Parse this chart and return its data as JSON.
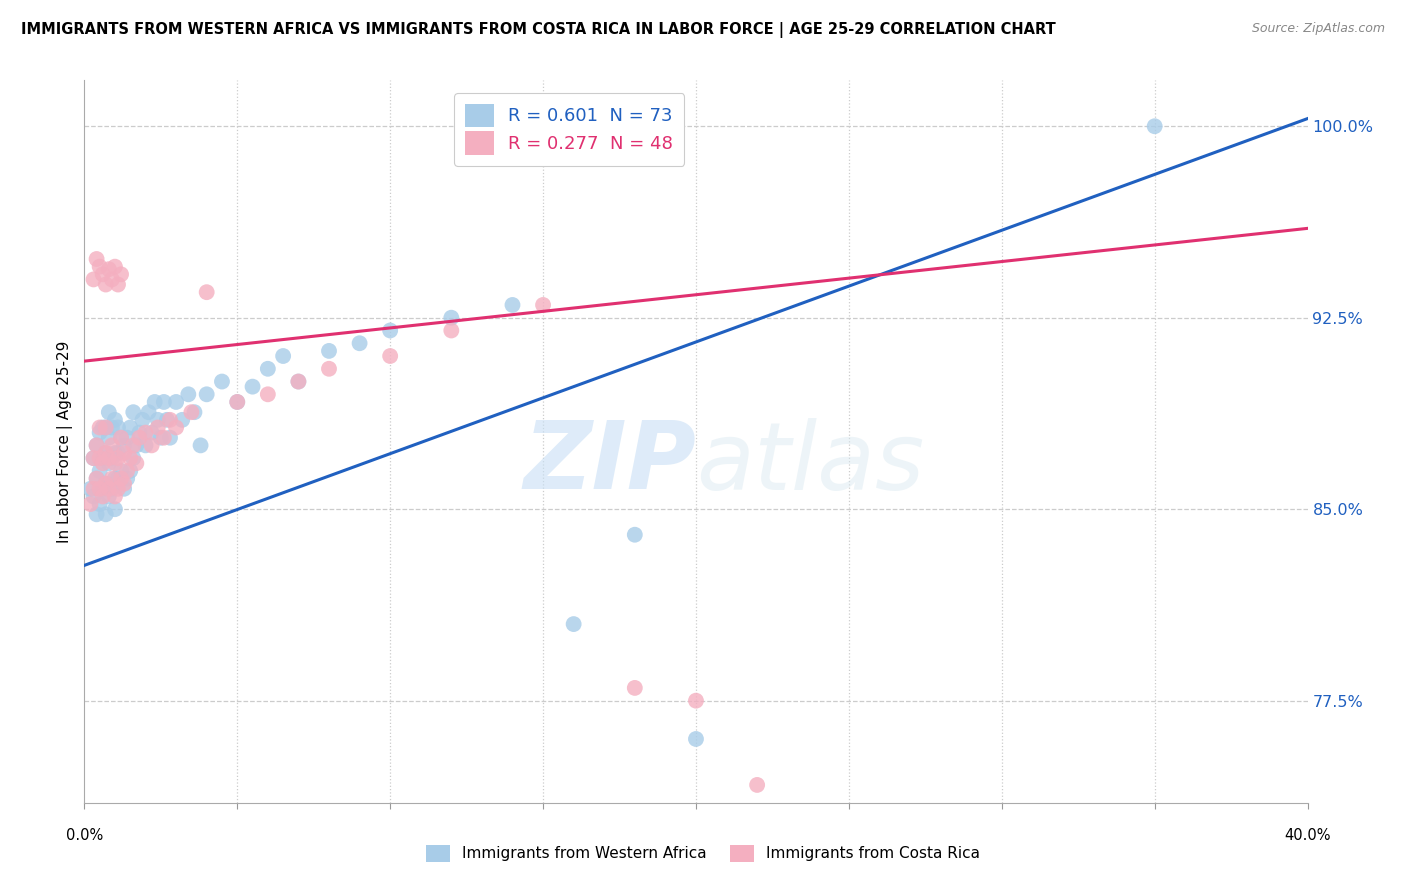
{
  "title": "IMMIGRANTS FROM WESTERN AFRICA VS IMMIGRANTS FROM COSTA RICA IN LABOR FORCE | AGE 25-29 CORRELATION CHART",
  "source": "Source: ZipAtlas.com",
  "ylabel_label": "In Labor Force | Age 25-29",
  "ytick_vals": [
    0.775,
    0.85,
    0.925,
    1.0
  ],
  "ytick_labels": [
    "77.5%",
    "85.0%",
    "92.5%",
    "100.0%"
  ],
  "xmin": 0.0,
  "xmax": 0.4,
  "ymin": 0.735,
  "ymax": 1.018,
  "blue_R": 0.601,
  "blue_N": 73,
  "pink_R": 0.277,
  "pink_N": 48,
  "blue_color": "#a8cce8",
  "pink_color": "#f4afc0",
  "blue_line_color": "#2060c0",
  "pink_line_color": "#e03070",
  "blue_label": "Immigrants from Western Africa",
  "pink_label": "Immigrants from Costa Rica",
  "watermark_zip": "ZIP",
  "watermark_atlas": "atlas",
  "grid_color": "#cccccc",
  "background_color": "#ffffff",
  "blue_line_x0": 0.0,
  "blue_line_y0": 0.828,
  "blue_line_x1": 0.4,
  "blue_line_y1": 1.003,
  "pink_line_x0": 0.0,
  "pink_line_y0": 0.908,
  "pink_line_x1": 0.4,
  "pink_line_y1": 0.96,
  "blue_scatter_x": [
    0.002,
    0.003,
    0.003,
    0.004,
    0.004,
    0.004,
    0.005,
    0.005,
    0.005,
    0.006,
    0.006,
    0.006,
    0.007,
    0.007,
    0.007,
    0.007,
    0.008,
    0.008,
    0.008,
    0.008,
    0.009,
    0.009,
    0.009,
    0.01,
    0.01,
    0.01,
    0.01,
    0.011,
    0.011,
    0.011,
    0.012,
    0.012,
    0.013,
    0.013,
    0.014,
    0.014,
    0.015,
    0.015,
    0.016,
    0.016,
    0.017,
    0.018,
    0.019,
    0.02,
    0.021,
    0.022,
    0.023,
    0.024,
    0.025,
    0.026,
    0.027,
    0.028,
    0.03,
    0.032,
    0.034,
    0.036,
    0.038,
    0.04,
    0.045,
    0.05,
    0.055,
    0.06,
    0.065,
    0.07,
    0.08,
    0.09,
    0.1,
    0.12,
    0.14,
    0.16,
    0.18,
    0.2,
    0.35
  ],
  "blue_scatter_y": [
    0.858,
    0.855,
    0.87,
    0.848,
    0.862,
    0.875,
    0.852,
    0.865,
    0.88,
    0.858,
    0.87,
    0.882,
    0.848,
    0.86,
    0.872,
    0.882,
    0.855,
    0.868,
    0.878,
    0.888,
    0.858,
    0.87,
    0.882,
    0.85,
    0.862,
    0.872,
    0.885,
    0.862,
    0.872,
    0.882,
    0.865,
    0.878,
    0.858,
    0.875,
    0.862,
    0.878,
    0.865,
    0.882,
    0.87,
    0.888,
    0.875,
    0.88,
    0.885,
    0.875,
    0.888,
    0.88,
    0.892,
    0.885,
    0.878,
    0.892,
    0.885,
    0.878,
    0.892,
    0.885,
    0.895,
    0.888,
    0.875,
    0.895,
    0.9,
    0.892,
    0.898,
    0.905,
    0.91,
    0.9,
    0.912,
    0.915,
    0.92,
    0.925,
    0.93,
    0.805,
    0.84,
    0.76,
    1.0
  ],
  "pink_scatter_x": [
    0.002,
    0.003,
    0.003,
    0.004,
    0.004,
    0.005,
    0.005,
    0.005,
    0.006,
    0.006,
    0.007,
    0.007,
    0.007,
    0.008,
    0.008,
    0.009,
    0.009,
    0.01,
    0.01,
    0.011,
    0.011,
    0.012,
    0.012,
    0.013,
    0.013,
    0.014,
    0.015,
    0.016,
    0.017,
    0.018,
    0.02,
    0.022,
    0.024,
    0.026,
    0.028,
    0.03,
    0.035,
    0.04,
    0.05,
    0.06,
    0.07,
    0.08,
    0.1,
    0.12,
    0.15,
    0.18,
    0.2,
    0.22
  ],
  "pink_scatter_y": [
    0.852,
    0.858,
    0.87,
    0.862,
    0.875,
    0.858,
    0.87,
    0.882,
    0.855,
    0.868,
    0.86,
    0.872,
    0.882,
    0.858,
    0.87,
    0.862,
    0.875,
    0.855,
    0.868,
    0.858,
    0.87,
    0.862,
    0.878,
    0.86,
    0.872,
    0.865,
    0.87,
    0.875,
    0.868,
    0.878,
    0.88,
    0.875,
    0.882,
    0.878,
    0.885,
    0.882,
    0.888,
    0.935,
    0.892,
    0.895,
    0.9,
    0.905,
    0.91,
    0.92,
    0.93,
    0.78,
    0.775,
    0.742
  ],
  "pink_high_x": [
    0.003,
    0.004,
    0.005,
    0.006,
    0.007,
    0.008,
    0.009,
    0.01,
    0.011,
    0.012
  ],
  "pink_high_y": [
    0.94,
    0.948,
    0.945,
    0.942,
    0.938,
    0.944,
    0.94,
    0.945,
    0.938,
    0.942
  ]
}
